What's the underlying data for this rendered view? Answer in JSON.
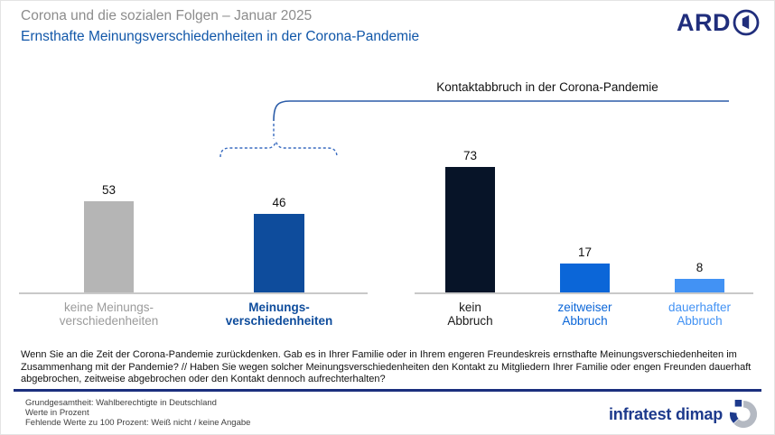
{
  "header": {
    "pretitle": "Corona und die sozialen Folgen – Januar 2025",
    "title": "Ernsthafte Meinungsverschiedenheiten in der Corona-Pandemie",
    "ard_logo_text": "ARD"
  },
  "chart_data": {
    "type": "bar",
    "unit": "Prozent",
    "ylim": [
      0,
      80
    ],
    "right_group_title": "Kontaktabbruch in der Corona-Pandemie",
    "groups": [
      {
        "name": "Ernsthafte Meinungsverschiedenheiten",
        "bars": [
          {
            "label_line1": "keine Meinungs-",
            "label_line2": "verschiedenheiten",
            "value": 53,
            "color": "#b5b5b5",
            "label_color": "#9b9b9b"
          },
          {
            "label_line1": "Meinungs-",
            "label_line2": "verschiedenheiten",
            "value": 46,
            "color": "#0e4c9c",
            "label_color": "#0e4c9c"
          }
        ]
      },
      {
        "name": "Kontaktabbruch in der Corona-Pandemie",
        "bars": [
          {
            "label_line1": "kein",
            "label_line2": "Abbruch",
            "value": 73,
            "color": "#071428",
            "label_color": "#1a1a1a"
          },
          {
            "label_line1": "zeitweiser",
            "label_line2": "Abbruch",
            "value": 17,
            "color": "#0b66d8",
            "label_color": "#0b66d8"
          },
          {
            "label_line1": "dauerhafter",
            "label_line2": "Abbruch",
            "value": 8,
            "color": "#4292f4",
            "label_color": "#4292f4"
          }
        ]
      }
    ]
  },
  "question": {
    "lines": [
      "Wenn Sie an die Zeit der Corona-Pandemie zurückdenken. Gab es in Ihrer Familie oder in Ihrem engeren Freundeskreis ernsthafte Meinungsverschiedenheiten im",
      "Zusammenhang mit der Pandemie? // Haben Sie wegen solcher Meinungsverschiedenheiten den Kontakt zu Mitgliedern Ihrer Familie oder engen Freunden dauerhaft",
      "abgebrochen, zeitweise abgebrochen oder den Kontakt dennoch aufrechterhalten?"
    ]
  },
  "footer": {
    "lines": [
      "Grundgesamtheit: Wahlberechtigte in Deutschland",
      "Werte in Prozent",
      "Fehlende Werte zu 100 Prozent: Weiß nicht / keine Angabe"
    ],
    "brand": "infratest dimap"
  },
  "colors": {
    "accent_blue": "#0e4c9c",
    "bracket_blue": "#3a6cc0",
    "divider_blue": "#1b2f7e",
    "axis_gray": "#c9c9c9"
  }
}
